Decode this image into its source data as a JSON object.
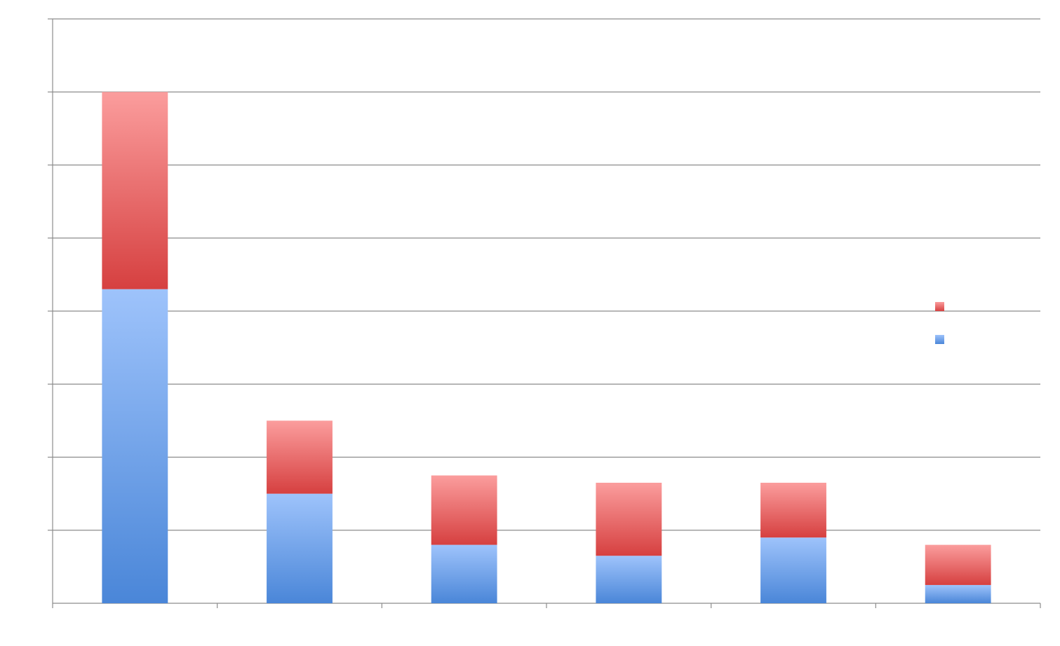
{
  "chart_data": {
    "type": "bar",
    "stacked": true,
    "categories": [
      "",
      "",
      "",
      "",
      "",
      ""
    ],
    "series": [
      {
        "color": "#4a86d8",
        "color_light": "#9ec3fb",
        "values": [
          43,
          15,
          8,
          6.5,
          9,
          2.5
        ]
      },
      {
        "color": "#d64040",
        "color_light": "#fb9d9d",
        "values": [
          27,
          10,
          9.5,
          10,
          7.5,
          5.5
        ]
      }
    ],
    "ylim": [
      0,
      80
    ],
    "ytick_step": 10,
    "grid": true,
    "legend": "right"
  }
}
